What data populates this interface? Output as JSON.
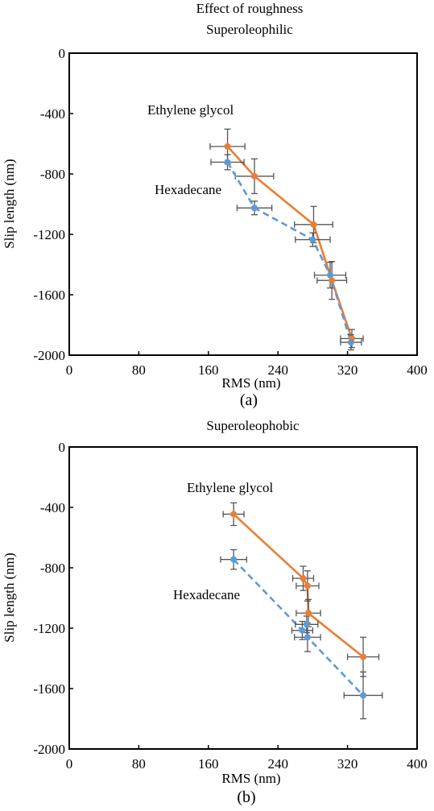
{
  "figure": {
    "title": "Effect of roughness"
  },
  "chart_data": [
    {
      "type": "line",
      "panel_label": "(a)",
      "title": "Superoleophilic",
      "xlabel": "RMS (nm)",
      "ylabel": "Slip length (nm)",
      "xlim": [
        0,
        400
      ],
      "ylim": [
        -2000,
        0
      ],
      "xticks": [
        0,
        80,
        160,
        240,
        320,
        400
      ],
      "yticks": [
        0,
        -400,
        -800,
        -1200,
        -1600,
        -2000
      ],
      "grid": false,
      "series": [
        {
          "name": "Ethylene glycol",
          "color": "#ED7D31",
          "dash": "solid",
          "x": [
            182,
            213,
            281,
            302,
            325
          ],
          "y": [
            -618,
            -815,
            -1135,
            -1505,
            -1890
          ],
          "xerr": [
            20,
            22,
            22,
            17,
            13
          ],
          "yerr": [
            115,
            115,
            120,
            125,
            60
          ]
        },
        {
          "name": "Hexadecane",
          "color": "#5B9BD5",
          "dash": "dashed",
          "x": [
            182,
            213,
            280,
            300,
            324
          ],
          "y": [
            -722,
            -1025,
            -1235,
            -1470,
            -1915
          ],
          "xerr": [
            19,
            20,
            20,
            18,
            12
          ],
          "yerr": [
            50,
            45,
            45,
            85,
            50
          ]
        }
      ]
    },
    {
      "type": "line",
      "panel_label": "(b)",
      "title": "Superoleophobic",
      "xlabel": "RMS (nm)",
      "ylabel": "Slip length (nm)",
      "xlim": [
        0,
        400
      ],
      "ylim": [
        -2000,
        0
      ],
      "xticks": [
        0,
        80,
        160,
        240,
        320,
        400
      ],
      "yticks": [
        0,
        -400,
        -800,
        -1200,
        -1600,
        -2000
      ],
      "grid": false,
      "series": [
        {
          "name": "Ethylene glycol",
          "color": "#ED7D31",
          "dash": "solid",
          "x": [
            189,
            269,
            274,
            275,
            338
          ],
          "y": [
            -445,
            -870,
            -920,
            -1100,
            -1390
          ],
          "xerr": [
            12,
            12,
            13,
            14,
            18
          ],
          "yerr": [
            75,
            80,
            100,
            90,
            130
          ]
        },
        {
          "name": "Hexadecane",
          "color": "#5B9BD5",
          "dash": "dashed",
          "x": [
            189,
            268,
            273,
            274,
            338
          ],
          "y": [
            -745,
            -1215,
            -1175,
            -1260,
            -1645
          ],
          "xerr": [
            15,
            12,
            13,
            15,
            22
          ],
          "yerr": [
            65,
            60,
            55,
            95,
            155
          ]
        }
      ]
    }
  ]
}
